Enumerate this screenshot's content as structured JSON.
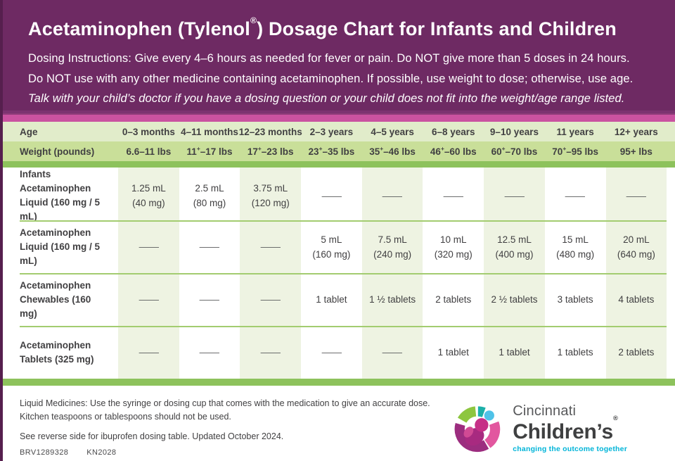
{
  "header": {
    "title": "Acetaminophen (Tylenol®) Dosage Chart for Infants and Children",
    "instructions": {
      "line1": "Dosing Instructions: Give every 4–6 hours as needed for fever or pain. Do NOT give more than 5 doses in 24 hours.",
      "line2": "Do NOT use with any other medicine containing acetaminophen. If possible, use weight to dose; otherwise, use age.",
      "line3": "Talk with your child’s doctor if you have a dosing question or your child does not fit into the weight/age range listed."
    }
  },
  "table": {
    "age_label": "Age",
    "weight_label": "Weight (pounds)",
    "columns": [
      {
        "age": "0–3 months",
        "weight": "6.6–11 lbs"
      },
      {
        "age": "4–11 months",
        "weight": "11⁺–17 lbs"
      },
      {
        "age": "12–23 months",
        "weight": "17⁺–23 lbs"
      },
      {
        "age": "2–3 years",
        "weight": "23⁺–35 lbs"
      },
      {
        "age": "4–5 years",
        "weight": "35⁺–46 lbs"
      },
      {
        "age": "6–8 years",
        "weight": "46⁺–60 lbs"
      },
      {
        "age": "9–10 years",
        "weight": "60⁺–70 lbs"
      },
      {
        "age": "11 years",
        "weight": "70⁺–95 lbs"
      },
      {
        "age": "12+ years",
        "weight": "95+ lbs"
      }
    ],
    "rows": [
      {
        "label": "Infants Acetaminophen Liquid (160 mg / 5 mL)",
        "cells": [
          "1.25 mL\n(40 mg)",
          "2.5 mL\n(80 mg)",
          "3.75 mL\n(120 mg)",
          "—",
          "—",
          "—",
          "—",
          "—",
          "—"
        ]
      },
      {
        "label": "Acetaminophen Liquid (160 mg / 5 mL)",
        "cells": [
          "—",
          "—",
          "—",
          "5 mL\n(160 mg)",
          "7.5 mL\n(240 mg)",
          "10 mL\n(320 mg)",
          "12.5 mL\n(400 mg)",
          "15 mL\n(480 mg)",
          "20 mL\n(640 mg)"
        ]
      },
      {
        "label": "Acetaminophen Chewables (160 mg)",
        "cells": [
          "—",
          "—",
          "—",
          "1 tablet",
          "1 ½ tablets",
          "2 tablets",
          "2 ½ tablets",
          "3 tablets",
          "4 tablets"
        ]
      },
      {
        "label": "Acetaminophen Tablets (325 mg)",
        "cells": [
          "—",
          "—",
          "—",
          "—",
          "—",
          "1 tablet",
          "1 tablet",
          "1 tablets",
          "2 tablets"
        ]
      }
    ]
  },
  "footer": {
    "liquid_note_line1": "Liquid Medicines: Use the syringe or dosing cup that comes with the medication to give an accurate dose.",
    "liquid_note_line2": "Kitchen teaspoons or tablespoons should not be used.",
    "reverse_note": "See reverse side for ibuprofen dosing table. Updated October 2024.",
    "code1": "BRV1289328",
    "code2": "KN2028",
    "logo": {
      "name_line1": "Cincinnati",
      "name_line2": "Children’s®",
      "tagline": "changing the outcome together"
    }
  },
  "colors": {
    "header_purple": "#6e2a63",
    "left_border_purple": "#561f4e",
    "accent_pink": "#ca52a0",
    "age_row_green": "#e1ecca",
    "weight_row_green": "#c9df99",
    "divider_green": "#8dc25c",
    "column_tint_green": "#eef3e2",
    "text_dark": "#414042",
    "brand_teal": "#00b4d8",
    "brand_magenta": "#c62f87",
    "brand_green": "#8dc63f",
    "brand_blue": "#4fc2e8"
  }
}
